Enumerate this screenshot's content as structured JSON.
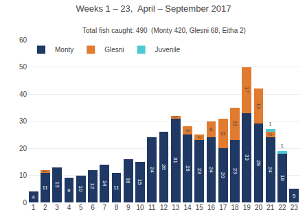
{
  "chart_data": {
    "type": "bar",
    "stacked": true,
    "title": "Weeks 1 – 23,  April – September 2017",
    "subtitle": "Total fish caught: 490  (Monty 420, Glesni 68, Eitha 2)",
    "categories": [
      "1",
      "2",
      "3",
      "4",
      "5",
      "6",
      "7",
      "8",
      "9",
      "10",
      "11",
      "12",
      "13",
      "14",
      "15",
      "16",
      "17",
      "18",
      "19",
      "20",
      "21",
      "22",
      "23"
    ],
    "series": [
      {
        "name": "Monty",
        "color": "#1f3864",
        "values": [
          4,
          11,
          13,
          9,
          10,
          12,
          14,
          11,
          16,
          15,
          24,
          26,
          31,
          25,
          23,
          24,
          20,
          23,
          33,
          29,
          24,
          18,
          5
        ]
      },
      {
        "name": "Glesni",
        "color": "#e07b30",
        "values": [
          0,
          1,
          0,
          0,
          0,
          0,
          0,
          0,
          0,
          0,
          0,
          0,
          1,
          3,
          2,
          6,
          11,
          12,
          17,
          13,
          2,
          0,
          0
        ]
      },
      {
        "name": "Juvenile",
        "color": "#4dc8d4",
        "values": [
          0,
          0,
          0,
          0,
          0,
          0,
          0,
          0,
          0,
          0,
          0,
          0,
          0,
          0,
          0,
          0,
          0,
          0,
          0,
          0,
          1,
          1,
          0
        ]
      }
    ],
    "ylim": [
      0,
      60
    ],
    "yticks": [
      0,
      10,
      20,
      30,
      40,
      50,
      60
    ],
    "grid": true,
    "legend": "upper left",
    "data_labels": true
  }
}
